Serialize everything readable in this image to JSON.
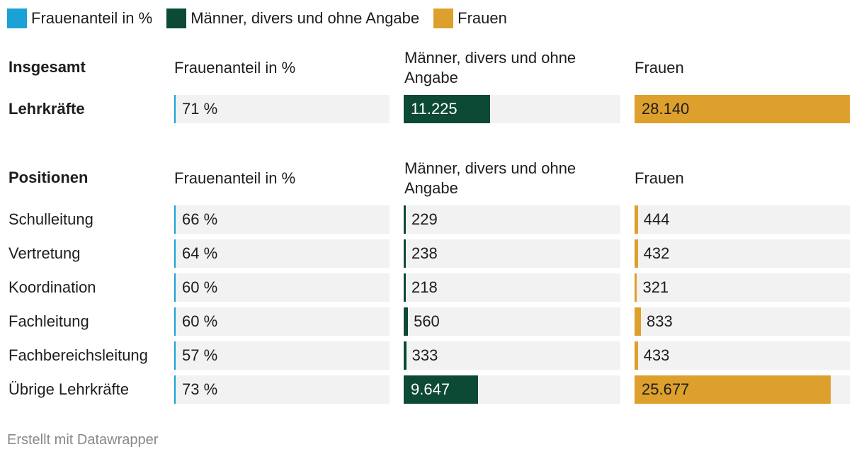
{
  "legend": [
    {
      "label": "Frauenanteil in %",
      "color": "#1aa1d6"
    },
    {
      "label": "Männer, divers und ohne Angabe",
      "color": "#0d4a36"
    },
    {
      "label": "Frauen",
      "color": "#dea02c"
    }
  ],
  "sections": [
    {
      "header": "Insgesamt",
      "col1": "Frauenanteil in %",
      "col2_line1": "Männer, divers und ohne",
      "col2_line2": "Angabe",
      "col3": "Frauen"
    },
    {
      "header": "Positionen",
      "col1": "Frauenanteil in %",
      "col2_line1": "Männer, divers und ohne",
      "col2_line2": "Angabe",
      "col3": "Frauen"
    }
  ],
  "chart_data": {
    "type": "table",
    "columns": [
      "Frauenanteil in %",
      "Männer, divers und ohne Angabe",
      "Frauen"
    ],
    "bar_max": 28140,
    "rows": [
      {
        "section": 0,
        "name": "Lehrkräfte",
        "pct": "71 %",
        "men": 11225,
        "men_label": "11.225",
        "women": 28140,
        "women_label": "28.140"
      },
      {
        "section": 1,
        "name": "Schulleitung",
        "pct": "66 %",
        "men": 229,
        "men_label": "229",
        "women": 444,
        "women_label": "444"
      },
      {
        "section": 1,
        "name": "Vertretung",
        "pct": "64 %",
        "men": 238,
        "men_label": "238",
        "women": 432,
        "women_label": "432"
      },
      {
        "section": 1,
        "name": "Koordination",
        "pct": "60 %",
        "men": 218,
        "men_label": "218",
        "women": 321,
        "women_label": "321"
      },
      {
        "section": 1,
        "name": "Fachleitung",
        "pct": "60 %",
        "men": 560,
        "men_label": "560",
        "women": 833,
        "women_label": "833"
      },
      {
        "section": 1,
        "name": "Fachbereichsleitung",
        "pct": "57 %",
        "men": 333,
        "men_label": "333",
        "women": 433,
        "women_label": "433"
      },
      {
        "section": 1,
        "name": "Übrige Lehrkräfte",
        "pct": "73 %",
        "men": 9647,
        "men_label": "9.647",
        "women": 25677,
        "women_label": "25.677"
      }
    ]
  },
  "footer": "Erstellt mit Datawrapper"
}
